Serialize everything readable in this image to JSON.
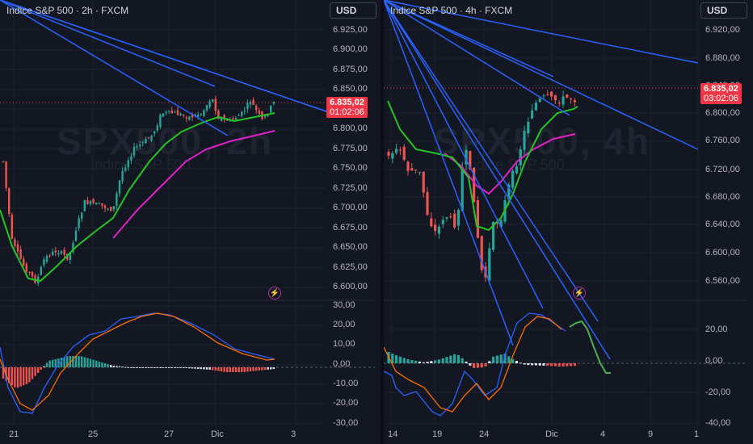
{
  "left": {
    "title": "Indice S&P 500 · 2h · FXCM",
    "currency": "USD",
    "watermark": {
      "symbol": "SPX500, 2h",
      "name": "Indice S&P 500"
    },
    "price_axis": [
      "6.925,00",
      "6.900,00",
      "6.875,00",
      "6.850,00",
      "6.825,00",
      "6.800,00",
      "6.775,00",
      "6.750,00",
      "6.725,00",
      "6.700,00",
      "6.675,00",
      "6.650,00",
      "6.625,00",
      "6.600,00"
    ],
    "current_price": "6.835,02",
    "countdown": "01:02:06",
    "macd_axis": [
      "30,00",
      "20,00",
      "10,00",
      "0,00",
      "-10,00",
      "-20,00",
      "-30,00"
    ],
    "time_axis": [
      "21",
      "25",
      "27",
      "Dic",
      "3"
    ],
    "colors": {
      "ema_fast": "#22c523",
      "ema_slow": "#e020c8",
      "up": "#26a69a",
      "down": "#ef5350",
      "trendline": "#2962ff"
    }
  },
  "right": {
    "title": "Indice S&P 500 · 4h · FXCM",
    "currency": "USD",
    "watermark": {
      "symbol": "SPX500, 4h",
      "name": "Indice S&P 500"
    },
    "price_axis": [
      "6.920,00",
      "6.880,00",
      "6.840,00",
      "6.800,00",
      "6.760,00",
      "6.720,00",
      "6.680,00",
      "6.640,00",
      "6.600,00",
      "6.560,00"
    ],
    "current_price": "6.835,02",
    "countdown": "03:02:06",
    "macd_axis": [
      "20,00",
      "0,00",
      "-20,00",
      "-40,00"
    ],
    "time_axis": [
      "14",
      "19",
      "24",
      "Dic",
      "4",
      "9",
      "1"
    ],
    "colors": {
      "ema_fast": "#22c523",
      "ema_slow": "#e020c8",
      "up": "#26a69a",
      "down": "#ef5350",
      "trendline": "#2962ff",
      "projection": "#4caf50"
    }
  }
}
